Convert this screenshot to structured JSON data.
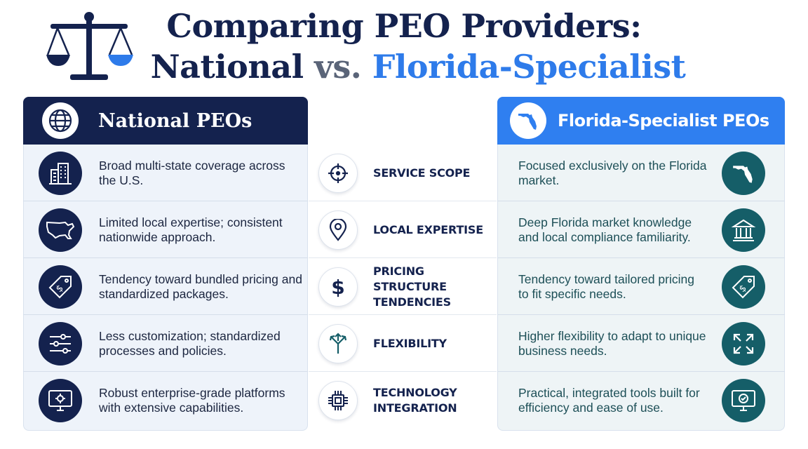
{
  "title": {
    "line1": "Comparing PEO Providers:",
    "line2_part1": "National",
    "line2_vs": "vs.",
    "line2_part2": "Florida-Specialist"
  },
  "left_header": {
    "title": "National PEOs",
    "icon": "globe-icon"
  },
  "right_header": {
    "title": "Florida-Specialist PEOs",
    "icon": "florida-map-icon"
  },
  "rows": [
    {
      "category": "SERVICE SCOPE",
      "category_icon": "crosshair-icon",
      "national": "Broad multi-state coverage across the U.S.",
      "national_icon": "buildings-icon",
      "florida": "Focused exclusively on the Florida market.",
      "florida_icon": "florida-map-icon"
    },
    {
      "category": "LOCAL EXPERTISE",
      "category_icon": "location-pin-icon",
      "national": "Limited local expertise; consistent nationwide approach.",
      "national_icon": "usa-map-icon",
      "florida": "Deep Florida market knowledge and local compliance familiarity.",
      "florida_icon": "government-building-icon"
    },
    {
      "category": "PRICING STRUCTURE TENDENCIES",
      "category_icon": "dollar-icon",
      "national": "Tendency toward bundled pricing and standardized packages.",
      "national_icon": "price-tag-icon",
      "florida": "Tendency toward tailored pricing to fit specific needs.",
      "florida_icon": "price-tag-icon"
    },
    {
      "category": "FLEXIBILITY",
      "category_icon": "split-arrows-icon",
      "national": "Less customization; standardized processes and policies.",
      "national_icon": "sliders-icon",
      "florida": "Higher flexibility to adapt to unique business needs.",
      "florida_icon": "expand-arrows-icon"
    },
    {
      "category": "TECHNOLOGY INTEGRATION",
      "category_icon": "chip-icon",
      "national": "Robust enterprise-grade platforms with extensive capabilities.",
      "national_icon": "monitor-gear-icon",
      "florida": "Practical, integrated tools built for efficiency and ease of use.",
      "florida_icon": "monitor-check-icon"
    }
  ],
  "colors": {
    "navy": "#14224e",
    "blue": "#2f7ff0",
    "teal": "#155e68",
    "vs_gray": "#5a6478"
  }
}
